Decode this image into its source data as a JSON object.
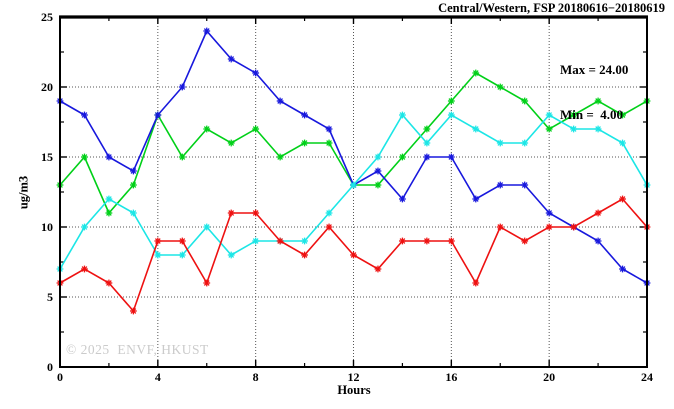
{
  "title": "Central/Western, FSP 20180616−20180619",
  "legend": {
    "max_label": "Max = 24.00",
    "min_label": "Min =  4.00"
  },
  "watermark": "© 2025  ENVF, HKUST",
  "colors": {
    "background": "#ffffff",
    "frame": "#000000",
    "grid": "#555555",
    "watermark": "#cbcbcb"
  },
  "chart_data": {
    "type": "line",
    "title": "Central/Western, FSP 20180616−20180619",
    "xlabel": "Hours",
    "ylabel": "ug/m3",
    "xlim": [
      0,
      24
    ],
    "ylim": [
      0,
      25
    ],
    "x_ticks": [
      0,
      4,
      8,
      12,
      16,
      20,
      24
    ],
    "y_ticks": [
      0,
      5,
      10,
      15,
      20,
      25
    ],
    "x_minor_step": 2,
    "y_minor_step": 2.5,
    "grid": "dotted, at major ticks only (interior)",
    "legend_position": "top-right, text only (no box)",
    "marker": "asterisk",
    "stats": {
      "max": 24.0,
      "min": 4.0
    },
    "x": [
      0,
      1,
      2,
      3,
      4,
      5,
      6,
      7,
      8,
      9,
      10,
      11,
      12,
      13,
      14,
      15,
      16,
      17,
      18,
      19,
      20,
      21,
      22,
      23,
      24
    ],
    "series": [
      {
        "name": "green-line",
        "color": "#00d018",
        "values": [
          13,
          15,
          11,
          13,
          18,
          15,
          17,
          16,
          17,
          15,
          16,
          16,
          13,
          13,
          15,
          17,
          19,
          21,
          20,
          19,
          17,
          18,
          19,
          18,
          19
        ]
      },
      {
        "name": "blue-line",
        "color": "#1818dd",
        "values": [
          19,
          18,
          15,
          14,
          18,
          20,
          24,
          22,
          21,
          19,
          18,
          17,
          13,
          14,
          12,
          15,
          15,
          12,
          13,
          13,
          11,
          10,
          9,
          7,
          6
        ]
      },
      {
        "name": "cyan-line",
        "color": "#1ce6e6",
        "values": [
          7,
          10,
          12,
          11,
          8,
          8,
          10,
          8,
          9,
          9,
          9,
          11,
          13,
          15,
          18,
          16,
          18,
          17,
          16,
          16,
          18,
          17,
          17,
          16,
          13
        ]
      },
      {
        "name": "red-line",
        "color": "#ee1111",
        "values": [
          6,
          7,
          6,
          4,
          9,
          9,
          6,
          11,
          11,
          9,
          8,
          10,
          8,
          7,
          9,
          9,
          9,
          6,
          10,
          9,
          10,
          10,
          11,
          12,
          10
        ]
      }
    ]
  }
}
